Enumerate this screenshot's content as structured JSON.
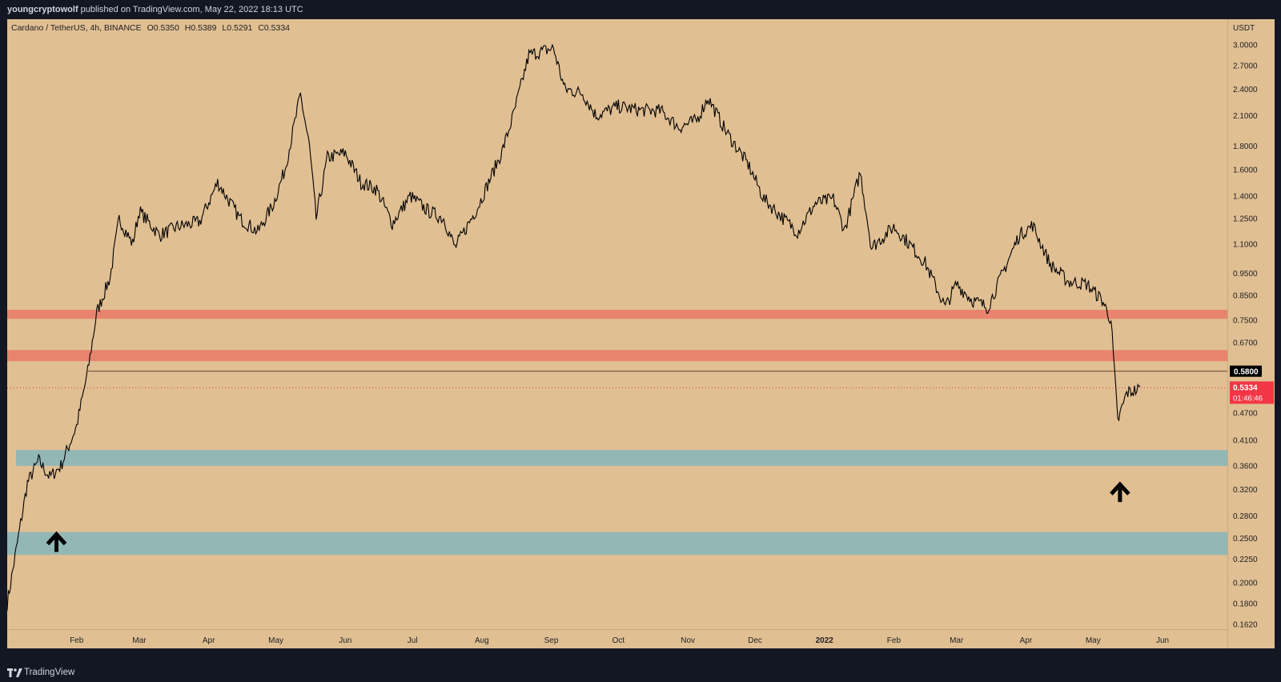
{
  "header": {
    "publisher": "youngcryptowolf",
    "published_text": "published on TradingView.com, May 22, 2022 18:13 UTC"
  },
  "legend": {
    "symbol": "Cardano / TetherUS, 4h, BINANCE",
    "open_label": "O",
    "open": "0.5350",
    "high_label": "H",
    "high": "0.5389",
    "low_label": "L",
    "low": "0.5291",
    "close_label": "C",
    "close": "0.5334"
  },
  "price_axis": {
    "currency": "USDT",
    "ticks": [
      "3.0000",
      "2.7000",
      "2.4000",
      "2.1000",
      "1.8000",
      "1.6000",
      "1.4000",
      "1.2500",
      "1.1000",
      "0.9500",
      "0.8500",
      "0.7500",
      "0.6700",
      "0.4700",
      "0.4100",
      "0.3600",
      "0.3200",
      "0.2800",
      "0.2500",
      "0.2250",
      "0.2000",
      "0.1800",
      "0.1620"
    ],
    "level_label": "0.5800",
    "last_price_label": "0.5334",
    "countdown": "01:46:46"
  },
  "colors": {
    "background": "#e0bf93",
    "resistance_zone": "#e8836f",
    "support_zone": "#93b7b5",
    "price_line": "#000000",
    "last_price_badge": "#f23645"
  },
  "footer": {
    "brand": "TradingView",
    "logo_icon": "tradingview-logo-icon"
  },
  "chart_data": {
    "type": "line",
    "scale": "log",
    "ylim": [
      0.162,
      3.2
    ],
    "xlabel": "",
    "ylabel": "",
    "x_tick_labels": [
      "Feb",
      "Mar",
      "Apr",
      "May",
      "Jun",
      "Jul",
      "Aug",
      "Sep",
      "Oct",
      "Nov",
      "Dec",
      "2022",
      "Feb",
      "Mar",
      "Apr",
      "May",
      "Jun"
    ],
    "x": [
      "2021-01-01",
      "2021-01-10",
      "2021-01-15",
      "2021-01-20",
      "2021-01-25",
      "2021-02-01",
      "2021-02-06",
      "2021-02-10",
      "2021-02-16",
      "2021-02-20",
      "2021-02-26",
      "2021-03-01",
      "2021-03-10",
      "2021-03-18",
      "2021-03-28",
      "2021-04-05",
      "2021-04-15",
      "2021-04-23",
      "2021-04-30",
      "2021-05-05",
      "2021-05-12",
      "2021-05-16",
      "2021-05-19",
      "2021-05-24",
      "2021-06-01",
      "2021-06-08",
      "2021-06-15",
      "2021-06-22",
      "2021-06-30",
      "2021-07-08",
      "2021-07-15",
      "2021-07-20",
      "2021-07-30",
      "2021-08-10",
      "2021-08-15",
      "2021-08-22",
      "2021-09-02",
      "2021-09-07",
      "2021-09-15",
      "2021-09-21",
      "2021-10-01",
      "2021-10-10",
      "2021-10-20",
      "2021-10-28",
      "2021-11-05",
      "2021-11-10",
      "2021-11-18",
      "2021-11-28",
      "2021-12-05",
      "2021-12-13",
      "2021-12-20",
      "2021-12-28",
      "2022-01-05",
      "2022-01-10",
      "2022-01-17",
      "2022-01-22",
      "2022-02-01",
      "2022-02-08",
      "2022-02-15",
      "2022-02-24",
      "2022-03-01",
      "2022-03-08",
      "2022-03-15",
      "2022-03-22",
      "2022-03-29",
      "2022-04-04",
      "2022-04-12",
      "2022-04-20",
      "2022-04-28",
      "2022-05-05",
      "2022-05-09",
      "2022-05-12",
      "2022-05-16",
      "2022-05-22"
    ],
    "series": [
      {
        "values": [
          0.18,
          0.33,
          0.37,
          0.34,
          0.36,
          0.44,
          0.58,
          0.78,
          0.93,
          1.25,
          1.1,
          1.3,
          1.15,
          1.2,
          1.23,
          1.5,
          1.25,
          1.17,
          1.35,
          1.6,
          2.33,
          1.8,
          1.25,
          1.7,
          1.74,
          1.5,
          1.45,
          1.22,
          1.4,
          1.3,
          1.25,
          1.08,
          1.32,
          1.75,
          2.1,
          2.85,
          2.95,
          2.4,
          2.35,
          2.1,
          2.2,
          2.16,
          2.15,
          1.98,
          2.05,
          2.3,
          1.94,
          1.64,
          1.38,
          1.26,
          1.17,
          1.35,
          1.38,
          1.18,
          1.58,
          1.08,
          1.2,
          1.1,
          1.0,
          0.8,
          0.9,
          0.83,
          0.8,
          0.96,
          1.15,
          1.21,
          0.99,
          0.91,
          0.9,
          0.83,
          0.75,
          0.45,
          0.52,
          0.53
        ]
      }
    ],
    "horizontal_levels": [
      0.58
    ],
    "zones": [
      {
        "type": "resistance",
        "low": 0.755,
        "high": 0.79
      },
      {
        "type": "resistance",
        "low": 0.61,
        "high": 0.645
      },
      {
        "type": "support",
        "low": 0.36,
        "high": 0.39
      },
      {
        "type": "support",
        "low": 0.23,
        "high": 0.258
      }
    ],
    "annotations": [
      {
        "type": "arrow-up",
        "date": "2021-01-23",
        "price": 0.245
      },
      {
        "type": "arrow-up",
        "date": "2022-05-13",
        "price": 0.315
      }
    ],
    "last_price": 0.5334
  }
}
